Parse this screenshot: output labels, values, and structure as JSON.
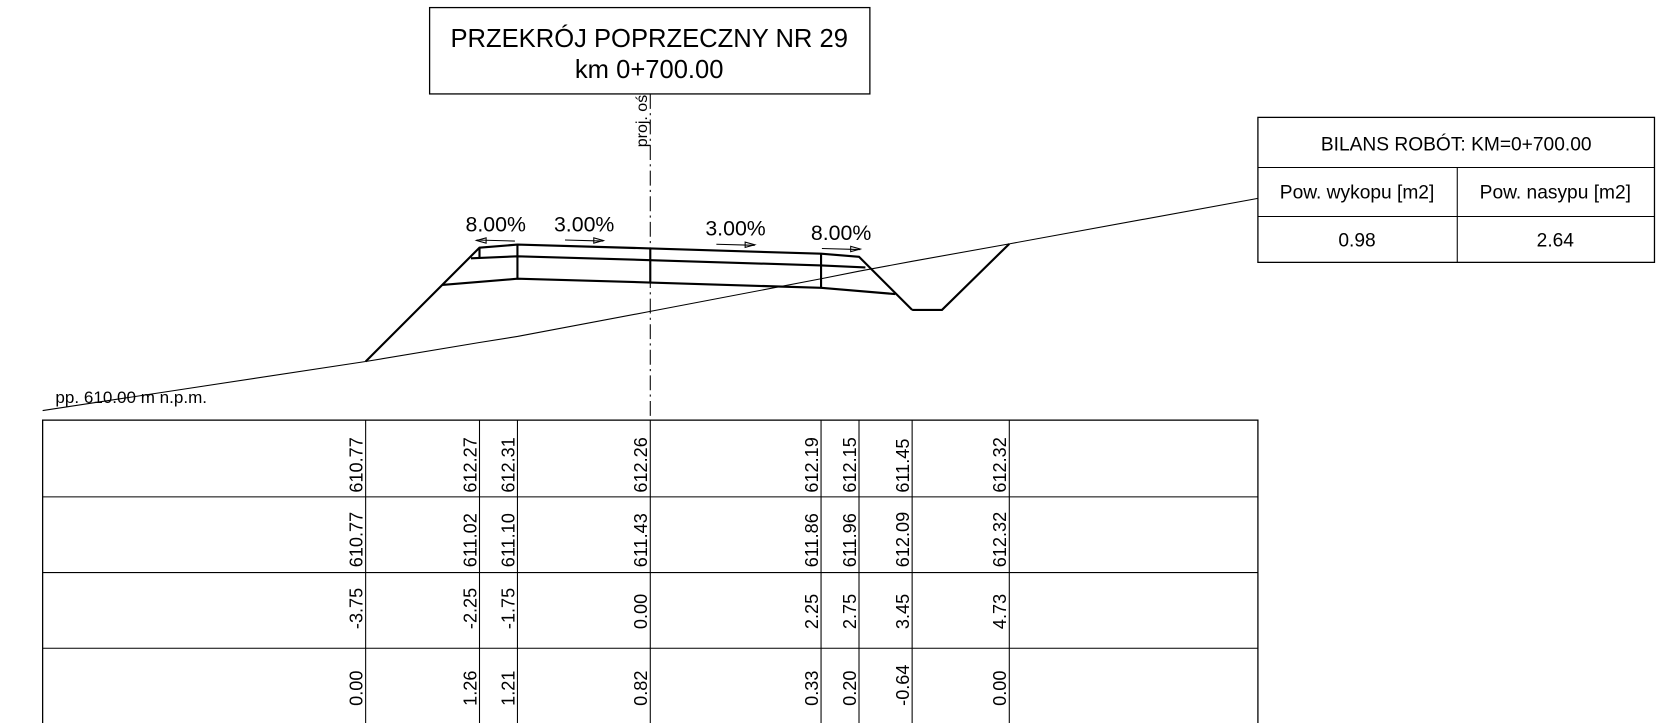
{
  "title": {
    "lines": [
      "PRZEKRÓJ POPRZECZNY NR 29",
      "km 0+700.00"
    ]
  },
  "axis_label": "proj. oś",
  "datum_label": "pp. 610.00 m n.p.m.",
  "slopes": [
    "8.00%",
    "3.00%",
    "3.00%",
    "8.00%"
  ],
  "balance": {
    "title": "BILANS ROBÓT: KM=0+700.00",
    "headers": [
      "Pow. wykopu [m2]",
      "Pow. nasypu [m2]"
    ],
    "values": [
      0.98,
      2.64
    ]
  },
  "profile": {
    "rows": [
      {
        "values": [
          "610.77",
          "612.27",
          "612.31",
          "612.26",
          "612.19",
          "612.15",
          "611.45",
          "612.32"
        ]
      },
      {
        "values": [
          "610.77",
          "611.02",
          "611.10",
          "611.43",
          "611.86",
          "611.96",
          "612.09",
          "612.32"
        ]
      },
      {
        "values": [
          "-3.75",
          "-2.25",
          "-1.75",
          "0.00",
          "2.25",
          "2.75",
          "3.45",
          "4.73"
        ]
      },
      {
        "values": [
          "0.00",
          "1.26",
          "1.21",
          "0.82",
          "0.33",
          "0.20",
          "-0.64",
          "0.00"
        ]
      }
    ]
  }
}
